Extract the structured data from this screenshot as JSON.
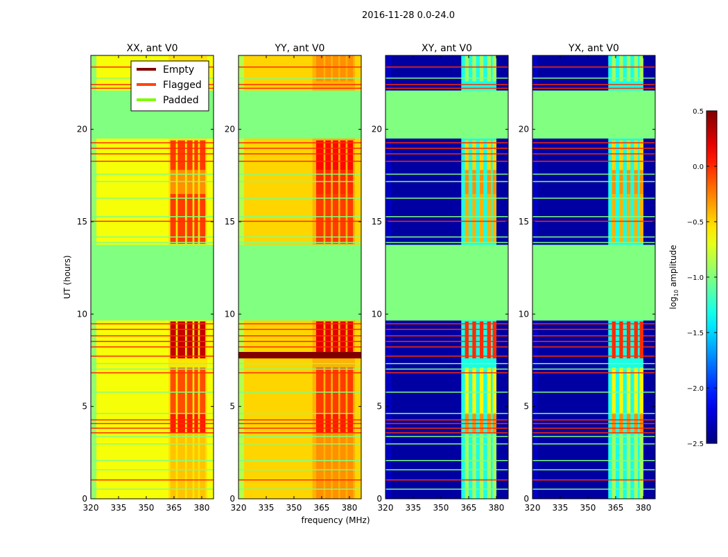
{
  "chart_data": {
    "type": "heatmap",
    "title": "2016-11-28 0.0-24.0",
    "xlabel": "frequency (MHz)",
    "ylabel": "UT (hours)",
    "xlim": [
      320,
      386.4
    ],
    "ylim": [
      0,
      24
    ],
    "xticks": [
      320,
      335,
      350,
      365,
      380
    ],
    "yticks": [
      0,
      5,
      10,
      15,
      20
    ],
    "colorbar": {
      "label": "log10 amplitude",
      "label_main": "log",
      "label_sub": "10",
      "label_rest": " amplitude",
      "range": [
        -2.5,
        0.5
      ],
      "ticks": [
        "0.5",
        "0.0",
        "−0.5",
        "−1.0",
        "−1.5",
        "−2.0",
        "−2.5"
      ],
      "tick_values": [
        0.5,
        0.0,
        -0.5,
        -1.0,
        -1.5,
        -2.0,
        -2.5
      ],
      "colormap": "jet"
    },
    "legend": {
      "placement": "top-right of first panel",
      "entries": [
        {
          "label": "Empty",
          "color": "#800000"
        },
        {
          "label": "Flagged",
          "color": "#ff4500"
        },
        {
          "label": "Padded",
          "color": "#7cfc00"
        }
      ]
    },
    "padded_ranges": [
      [
        9.65,
        13.75
      ],
      [
        19.5,
        22.1
      ]
    ],
    "flagged_rows": [
      1.05,
      3.6,
      3.85,
      4.1,
      4.3,
      6.85,
      7.75,
      8.25,
      8.55,
      8.85,
      9.2,
      9.5,
      15.05,
      18.3,
      18.7,
      19.0,
      19.3,
      22.25,
      22.45,
      23.4
    ],
    "padded_rows": [
      0.55,
      1.6,
      2.1,
      3.0,
      3.4,
      4.65,
      5.8,
      7.05,
      7.35,
      13.9,
      14.2,
      15.3,
      16.3,
      17.2,
      17.6,
      22.8
    ],
    "panels": [
      {
        "title": "XX, ant V0",
        "base": -0.65,
        "edge": -0.95,
        "channel": {
          "range": [
            362,
            383
          ],
          "value": -0.55
        },
        "empty_rows": [],
        "hot_columns": [
          [
            363,
            366
          ],
          [
            367,
            371
          ],
          [
            372,
            375
          ],
          [
            376,
            378
          ],
          [
            379,
            382
          ]
        ],
        "hot_periods": [
          [
            0,
            3.5,
            -0.45
          ],
          [
            3.6,
            4.6,
            0.05
          ],
          [
            4.6,
            7.1,
            -0.1
          ],
          [
            7.6,
            9.6,
            0.3
          ],
          [
            13.8,
            16.5,
            -0.05
          ],
          [
            16.5,
            17.8,
            -0.3
          ],
          [
            17.8,
            19.4,
            -0.05
          ]
        ]
      },
      {
        "title": "YY, ant V0",
        "base": -0.5,
        "edge": -0.85,
        "channel": {
          "range": [
            360,
            383
          ],
          "value": -0.4
        },
        "empty_rows": [
          [
            7.6,
            7.95
          ]
        ],
        "hot_columns": [
          [
            362,
            366
          ],
          [
            367,
            370
          ],
          [
            371,
            374
          ],
          [
            375,
            378
          ],
          [
            379,
            382
          ]
        ],
        "hot_periods": [
          [
            0,
            3.5,
            -0.3
          ],
          [
            3.6,
            4.6,
            0.05
          ],
          [
            4.6,
            7.1,
            -0.05
          ],
          [
            7.95,
            9.6,
            0.2
          ],
          [
            13.8,
            16.5,
            -0.05
          ],
          [
            16.5,
            17.8,
            0.0
          ],
          [
            17.8,
            19.4,
            0.1
          ],
          [
            22.6,
            24,
            -0.3
          ]
        ]
      },
      {
        "title": "XY, ant V0",
        "base": -2.4,
        "edge": -2.3,
        "channel": {
          "range": [
            361,
            380
          ],
          "value": -1.3
        },
        "empty_rows": [],
        "hot_columns": [
          [
            363,
            365
          ],
          [
            367,
            369
          ],
          [
            371,
            373
          ],
          [
            375,
            377
          ],
          [
            378,
            380
          ]
        ],
        "hot_periods": [
          [
            0,
            3.5,
            -0.9
          ],
          [
            3.6,
            4.6,
            -0.3
          ],
          [
            4.6,
            7.1,
            -0.6
          ],
          [
            7.6,
            9.6,
            0.0
          ],
          [
            13.8,
            16.5,
            -0.4
          ],
          [
            16.5,
            17.8,
            -0.3
          ],
          [
            17.8,
            19.4,
            -0.5
          ],
          [
            22.6,
            24,
            -0.9
          ]
        ]
      },
      {
        "title": "YX, ant V0",
        "base": -2.4,
        "edge": -2.3,
        "channel": {
          "range": [
            361,
            380
          ],
          "value": -1.3
        },
        "empty_rows": [],
        "hot_columns": [
          [
            363,
            365
          ],
          [
            367,
            369
          ],
          [
            371,
            373
          ],
          [
            375,
            377
          ],
          [
            378,
            380
          ]
        ],
        "hot_periods": [
          [
            0,
            3.5,
            -0.9
          ],
          [
            3.6,
            4.6,
            -0.3
          ],
          [
            4.6,
            7.1,
            -0.6
          ],
          [
            7.6,
            9.6,
            0.0
          ],
          [
            13.8,
            16.5,
            -0.4
          ],
          [
            16.5,
            17.8,
            -0.3
          ],
          [
            17.8,
            19.4,
            -0.5
          ],
          [
            22.6,
            24,
            -0.9
          ]
        ]
      }
    ]
  }
}
